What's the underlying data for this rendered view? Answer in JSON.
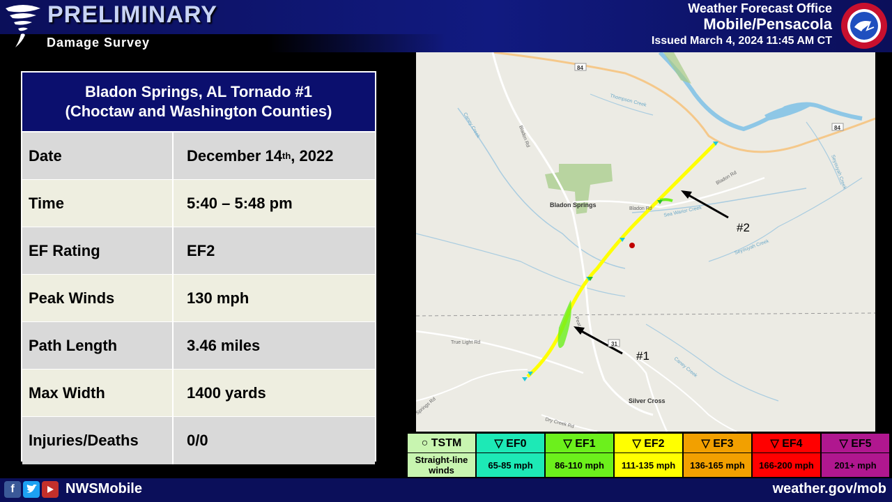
{
  "header": {
    "title": "PRELIMINARY",
    "subtitle": "Damage Survey",
    "office_line1": "Weather Forecast Office",
    "office_line2": "Mobile/Pensacola",
    "issued": "Issued March 4, 2024 11:45 AM CT"
  },
  "table": {
    "title_line1": "Bladon Springs, AL Tornado #1",
    "title_line2": "(Choctaw and Washington Counties)",
    "rows": [
      {
        "label": "Date",
        "value_pre": "December 14",
        "value_sup": "th",
        "value_post": ", 2022"
      },
      {
        "label": "Time",
        "value": "5:40 – 5:48 pm"
      },
      {
        "label": "EF Rating",
        "value": "EF2"
      },
      {
        "label": "Peak Winds",
        "value": "130 mph"
      },
      {
        "label": "Path Length",
        "value": "3.46 miles"
      },
      {
        "label": "Max Width",
        "value": "1400 yards"
      },
      {
        "label": "Injuries/Deaths",
        "value": "0/0"
      }
    ]
  },
  "map": {
    "places": {
      "bladon_springs": "Bladon Springs",
      "silver_cross": "Silver Cross"
    },
    "roads": {
      "r84a": "84",
      "r84b": "84",
      "r31": "31",
      "bladon_rd1": "Bladon Rd",
      "bladon_rd2": "Bladon Rd",
      "bladon_rd3": "Bladon Rd",
      "true_light": "True Light Rd",
      "dry_creek": "Dry Creek Rd",
      "springs_rd": "Springs Rd",
      "peat": "Peat"
    },
    "creeks": {
      "caney1": "Caney Creek",
      "caney2": "Caney Creek",
      "thompson": "Thompson Creek",
      "sea_warior": "Sea Warior Creek",
      "seyouyah1": "Seyouyah Creek",
      "seyouyah2": "Seyouyah Creek"
    },
    "labels": {
      "one": "#1",
      "two": "#2"
    }
  },
  "scale": [
    {
      "top": "○ TSTM",
      "bottom": "Straight-line winds",
      "color": "#c8f5b0"
    },
    {
      "top": "▽ EF0",
      "bottom": "65-85 mph",
      "color": "#1de9b6"
    },
    {
      "top": "▽ EF1",
      "bottom": "86-110 mph",
      "color": "#6cf01c"
    },
    {
      "top": "▽ EF2",
      "bottom": "111-135 mph",
      "color": "#ffff00"
    },
    {
      "top": "▽ EF3",
      "bottom": "136-165 mph",
      "color": "#f2a000"
    },
    {
      "top": "▽ EF4",
      "bottom": "166-200 mph",
      "color": "#ff0000"
    },
    {
      "top": "▽ EF5",
      "bottom": "201+ mph",
      "color": "#b0178f"
    }
  ],
  "footer": {
    "handle": "NWSMobile",
    "site": "weather.gov/mob"
  },
  "icons": {
    "tornado": "tornado-icon",
    "nws": "nws-logo",
    "facebook": "facebook-icon",
    "twitter": "twitter-icon",
    "youtube": "youtube-icon"
  }
}
